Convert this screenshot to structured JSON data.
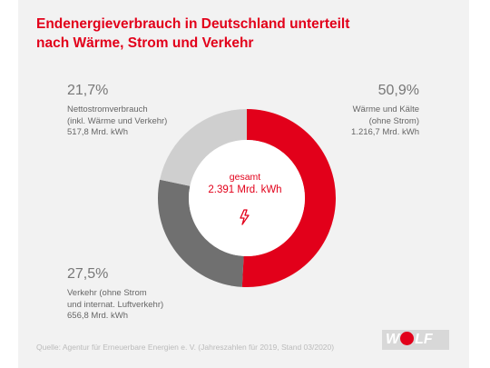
{
  "title": "Endenergieverbrauch in Deutschland unterteilt nach Wärme, Strom und Verkehr",
  "chart_data": {
    "type": "pie",
    "variant": "donut",
    "title": "Endenergieverbrauch in Deutschland unterteilt nach Wärme, Strom und Verkehr",
    "total_label": "gesamt",
    "total_value": "2.391 Mrd. kWh",
    "unit": "Mrd. kWh",
    "slices": [
      {
        "label": "Wärme und Kälte\n(ohne Strom)",
        "percent": 50.9,
        "percent_label": "50,9%",
        "value": 1216.7,
        "value_label": "1.216,7 Mrd. kWh",
        "color": "#e2001a"
      },
      {
        "label": "Verkehr (ohne Strom\nund internat. Luftverkehr)",
        "percent": 27.5,
        "percent_label": "27,5%",
        "value": 656.8,
        "value_label": "656,8 Mrd. kWh",
        "color": "#707070"
      },
      {
        "label": "Nettostromverbrauch\n(inkl. Wärme und Verkehr)",
        "percent": 21.7,
        "percent_label": "21,7%",
        "value": 517.8,
        "value_label": "517,8 Mrd. kWh",
        "color": "#cfcfcf"
      }
    ]
  },
  "source": "Quelle: Agentur für Erneuerbare Energien e. V. (Jahreszahlen für 2019, Stand 03/2020)",
  "logo": {
    "text_left": "W",
    "text_right": "LF"
  },
  "colors": {
    "accent": "#e2001a",
    "background": "#f2f2f2"
  },
  "icons": {
    "center": "lightning-bolt-icon"
  }
}
